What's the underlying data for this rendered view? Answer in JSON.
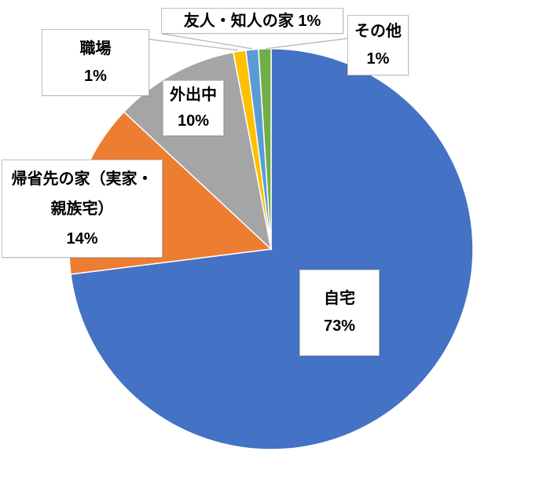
{
  "chart_data": {
    "type": "pie",
    "title": "",
    "categories": [
      "自宅",
      "帰省先の家（実家・親族宅）",
      "外出中",
      "職場",
      "友人・知人の家",
      "その他"
    ],
    "values": [
      73,
      14,
      10,
      1,
      1,
      1
    ],
    "percent_labels": [
      "73%",
      "14%",
      "10%",
      "1%",
      "1%",
      "1%"
    ],
    "colors": [
      "#4472C4",
      "#ED7D31",
      "#A5A5A5",
      "#FFC000",
      "#5B9BD5",
      "#70AD47"
    ],
    "start_angle_deg": 0,
    "direction": "clockwise",
    "legend": "none",
    "data_labels": "category name + percentage in white callout boxes"
  },
  "labels": {
    "jitaku": {
      "name": "自宅",
      "value": "73%"
    },
    "kisei": {
      "line1": "帰省先の家（実家・",
      "line2": "親族宅）",
      "value": "14%"
    },
    "gaishutsu": {
      "name": "外出中",
      "value": "10%"
    },
    "shokuba": {
      "name": "職場",
      "value": "1%"
    },
    "yujin": {
      "text": "友人・知人の家 1%"
    },
    "sonota": {
      "name": "その他",
      "value": "1%"
    }
  },
  "colors": {
    "background": "#FFFFFF",
    "label_box_bg": "#FFFFFF",
    "label_box_border": "#BFBFBF",
    "leader_line": "#BFBFBF",
    "slice_separator": "#FFFFFF",
    "text": "#000000"
  }
}
